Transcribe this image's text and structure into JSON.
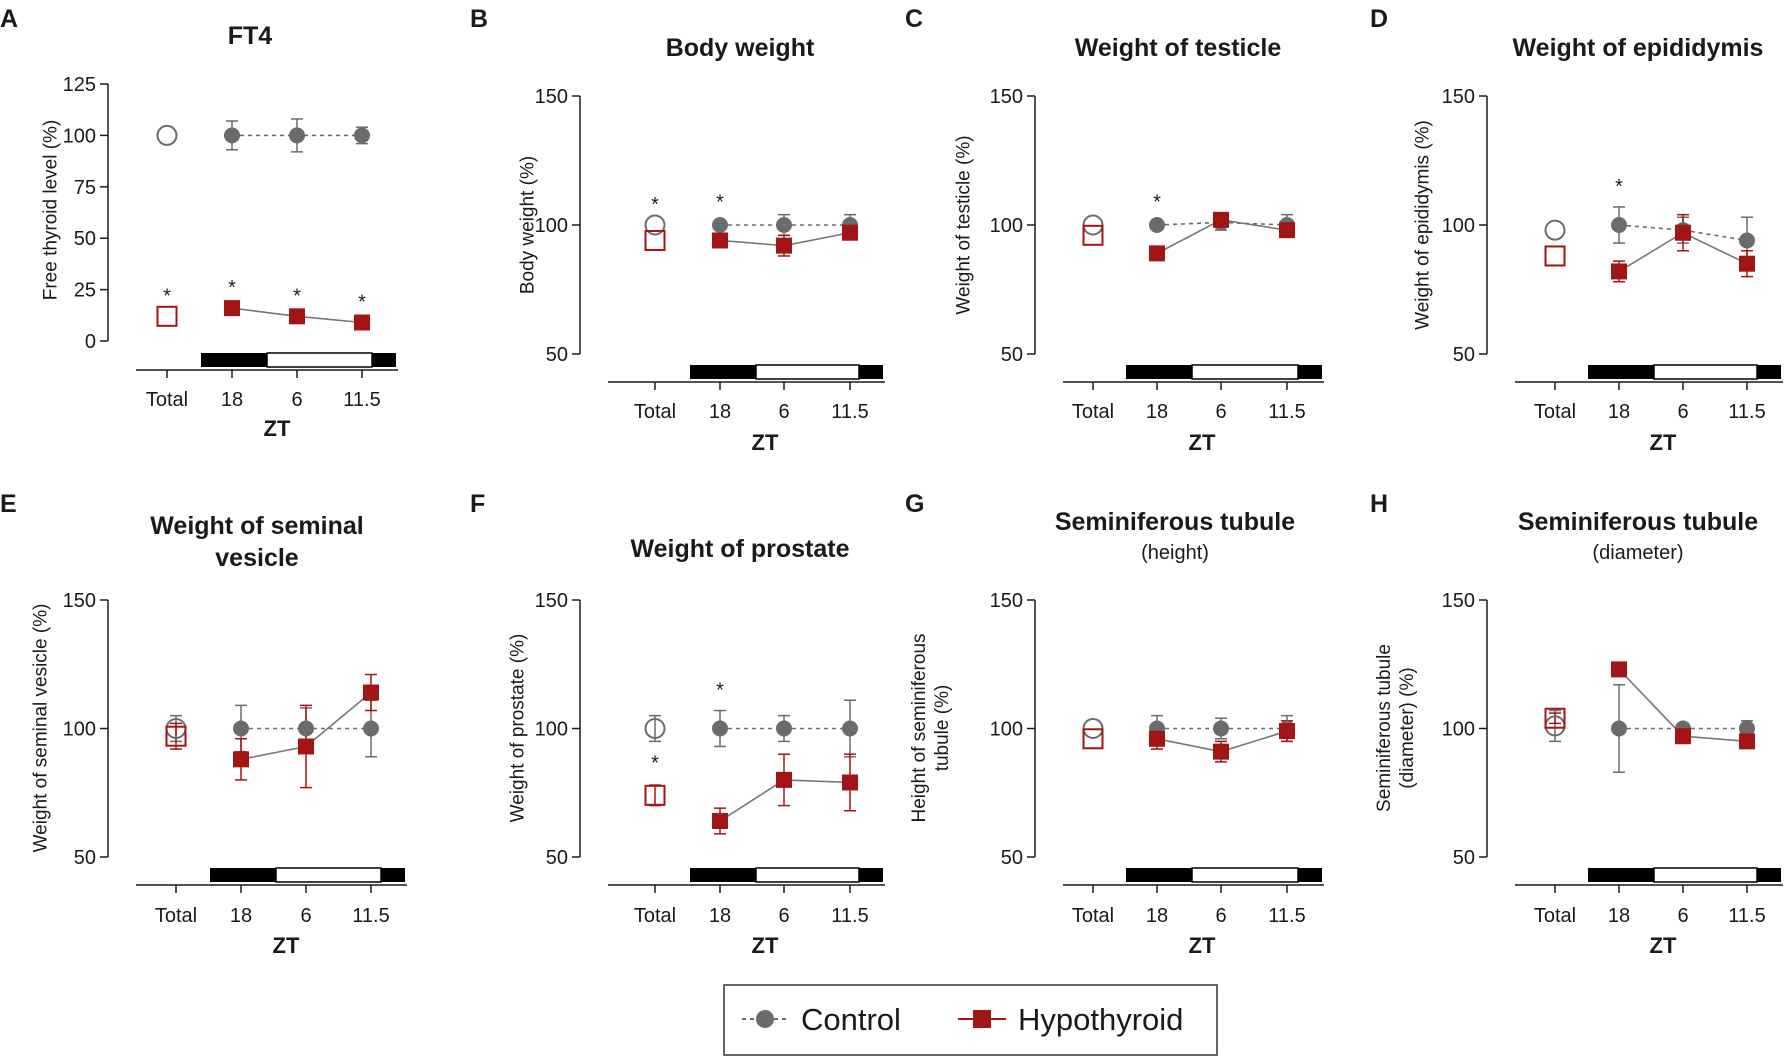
{
  "legend": {
    "control_label": "Control",
    "hypothyroid_label": "Hypothyroid"
  },
  "colors": {
    "control": "#6b6b6b",
    "hypothyroid": "#a31515",
    "axis": "#1a1a1a"
  },
  "chart_data": [
    {
      "panel": "A",
      "type": "scatter",
      "title": "FT4",
      "subtitle": "",
      "ylabel": [
        "Free thyroid level (%)"
      ],
      "xlabel": "ZT",
      "categories": [
        "Total",
        "18",
        "6",
        "11.5"
      ],
      "ylim": [
        0,
        125
      ],
      "yticks": [
        0,
        25,
        50,
        75,
        100,
        125
      ],
      "series": [
        {
          "name": "Control",
          "total": 100,
          "values": [
            100,
            100,
            100
          ],
          "errors": [
            7,
            8,
            4
          ],
          "total_error": 0
        },
        {
          "name": "Hypothyroid",
          "total": 12,
          "values": [
            16,
            12,
            9
          ],
          "errors": [
            1,
            1,
            1
          ],
          "total_error": 0
        }
      ],
      "significance": [
        true,
        true,
        true,
        true
      ]
    },
    {
      "panel": "B",
      "type": "scatter",
      "title": "Body weight",
      "subtitle": "",
      "ylabel": [
        "Body weight (%)"
      ],
      "xlabel": "ZT",
      "categories": [
        "Total",
        "18",
        "6",
        "11.5"
      ],
      "ylim": [
        50,
        150
      ],
      "yticks": [
        50,
        100,
        150
      ],
      "series": [
        {
          "name": "Control",
          "total": 100,
          "values": [
            100,
            100,
            100
          ],
          "errors": [
            1,
            4,
            4
          ],
          "total_error": 0
        },
        {
          "name": "Hypothyroid",
          "total": 94,
          "values": [
            94,
            92,
            97
          ],
          "errors": [
            2,
            4,
            2
          ],
          "total_error": 0
        }
      ],
      "significance": [
        true,
        true,
        false,
        false
      ]
    },
    {
      "panel": "C",
      "type": "scatter",
      "title": "Weight of testicle",
      "subtitle": "",
      "ylabel": [
        "Weight of testicle (%)"
      ],
      "xlabel": "ZT",
      "categories": [
        "Total",
        "18",
        "6",
        "11.5"
      ],
      "ylim": [
        50,
        150
      ],
      "yticks": [
        50,
        100,
        150
      ],
      "series": [
        {
          "name": "Control",
          "total": 100,
          "values": [
            100,
            101,
            100
          ],
          "errors": [
            1,
            3,
            4
          ],
          "total_error": 0
        },
        {
          "name": "Hypothyroid",
          "total": 96,
          "values": [
            89,
            102,
            98
          ],
          "errors": [
            1,
            2,
            2
          ],
          "total_error": 0
        }
      ],
      "significance": [
        false,
        true,
        false,
        false
      ]
    },
    {
      "panel": "D",
      "type": "scatter",
      "title": "Weight of epididymis",
      "subtitle": "",
      "ylabel": [
        "Weight of epididymis (%)"
      ],
      "xlabel": "ZT",
      "categories": [
        "Total",
        "18",
        "6",
        "11.5"
      ],
      "ylim": [
        50,
        150
      ],
      "yticks": [
        50,
        100,
        150
      ],
      "series": [
        {
          "name": "Control",
          "total": 98,
          "values": [
            100,
            98,
            94
          ],
          "errors": [
            7,
            5,
            9
          ],
          "total_error": 0
        },
        {
          "name": "Hypothyroid",
          "total": 88,
          "values": [
            82,
            97,
            85
          ],
          "errors": [
            4,
            7,
            5
          ],
          "total_error": 0
        }
      ],
      "significance": [
        false,
        true,
        false,
        false
      ]
    },
    {
      "panel": "E",
      "type": "scatter",
      "title": "Weight of seminal",
      "subtitle": "vesicle",
      "subtitle_bold": true,
      "ylabel": [
        "Weight of seminal vesicle (%)"
      ],
      "xlabel": "ZT",
      "categories": [
        "Total",
        "18",
        "6",
        "11.5"
      ],
      "ylim": [
        50,
        150
      ],
      "yticks": [
        50,
        100,
        150
      ],
      "series": [
        {
          "name": "Control",
          "total": 100,
          "values": [
            100,
            100,
            100
          ],
          "errors": [
            9,
            8,
            11
          ],
          "total_error": 5
        },
        {
          "name": "Hypothyroid",
          "total": 97,
          "values": [
            88,
            93,
            114
          ],
          "errors": [
            8,
            16,
            7
          ],
          "total_error": 5
        }
      ],
      "significance": [
        false,
        false,
        false,
        false
      ]
    },
    {
      "panel": "F",
      "type": "scatter",
      "title": "Weight of prostate",
      "subtitle": "",
      "ylabel": [
        "Weight of prostate (%)"
      ],
      "xlabel": "ZT",
      "categories": [
        "Total",
        "18",
        "6",
        "11.5"
      ],
      "ylim": [
        50,
        150
      ],
      "yticks": [
        50,
        100,
        150
      ],
      "series": [
        {
          "name": "Control",
          "total": 100,
          "values": [
            100,
            100,
            100
          ],
          "errors": [
            7,
            5,
            11
          ],
          "total_error": 5
        },
        {
          "name": "Hypothyroid",
          "total": 74,
          "values": [
            64,
            80,
            79
          ],
          "errors": [
            5,
            10,
            11
          ],
          "total_error": 4
        }
      ],
      "significance": [
        true,
        true,
        false,
        false
      ]
    },
    {
      "panel": "G",
      "type": "scatter",
      "title": "Seminiferous tubule",
      "subtitle": "(height)",
      "subtitle_bold": false,
      "ylabel": [
        "Height of seminiferous",
        "tubule (%)"
      ],
      "xlabel": "ZT",
      "categories": [
        "Total",
        "18",
        "6",
        "11.5"
      ],
      "ylim": [
        50,
        150
      ],
      "yticks": [
        50,
        100,
        150
      ],
      "series": [
        {
          "name": "Control",
          "total": 100,
          "values": [
            100,
            100,
            100
          ],
          "errors": [
            5,
            4,
            5
          ],
          "total_error": 0
        },
        {
          "name": "Hypothyroid",
          "total": 96,
          "values": [
            96,
            91,
            99
          ],
          "errors": [
            4,
            4,
            4
          ],
          "total_error": 0
        }
      ],
      "significance": [
        false,
        false,
        false,
        false
      ]
    },
    {
      "panel": "H",
      "type": "scatter",
      "title": "Seminiferous tubule",
      "subtitle": "(diameter)",
      "subtitle_bold": false,
      "ylabel": [
        "Seminiferous tubule",
        "(diameter) (%)"
      ],
      "xlabel": "ZT",
      "categories": [
        "Total",
        "18",
        "6",
        "11.5"
      ],
      "ylim": [
        50,
        150
      ],
      "yticks": [
        50,
        100,
        150
      ],
      "series": [
        {
          "name": "Control",
          "total": 101,
          "values": [
            100,
            100,
            100
          ],
          "errors": [
            17,
            2,
            3
          ],
          "total_error": 6
        },
        {
          "name": "Hypothyroid",
          "total": 104,
          "values": [
            123,
            97,
            95
          ],
          "errors": [
            2,
            2,
            2
          ],
          "total_error": 2
        }
      ],
      "significance": [
        false,
        false,
        false,
        false
      ]
    }
  ]
}
